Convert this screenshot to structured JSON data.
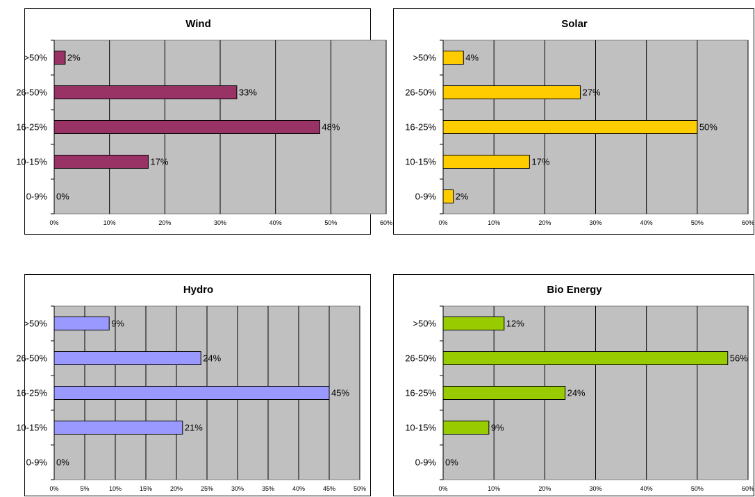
{
  "chart_data": [
    {
      "type": "bar",
      "title": "Wind",
      "categories": [
        ">50%",
        "26-50%",
        "16-25%",
        "10-15%",
        "0-9%"
      ],
      "values": [
        2,
        33,
        48,
        17,
        0
      ],
      "value_labels": [
        "2%",
        "33%",
        "48%",
        "17%",
        "0%"
      ],
      "xlim": [
        0,
        60
      ],
      "xticks": [
        "0%",
        "10%",
        "20%",
        "30%",
        "40%",
        "50%",
        "60%"
      ],
      "bar_color": "#993366",
      "plot_background": "#c0c0c0",
      "grid": true
    },
    {
      "type": "bar",
      "title": "Solar",
      "categories": [
        ">50%",
        "26-50%",
        "16-25%",
        "10-15%",
        "0-9%"
      ],
      "values": [
        4,
        27,
        50,
        17,
        2
      ],
      "value_labels": [
        "4%",
        "27%",
        "50%",
        "17%",
        "2%"
      ],
      "xlim": [
        0,
        60
      ],
      "xticks": [
        "0%",
        "10%",
        "20%",
        "30%",
        "40%",
        "50%",
        "60%"
      ],
      "bar_color": "#ffcc00",
      "plot_background": "#c0c0c0",
      "grid": true
    },
    {
      "type": "bar",
      "title": "Hydro",
      "categories": [
        ">50%",
        "26-50%",
        "16-25%",
        "10-15%",
        "0-9%"
      ],
      "values": [
        9,
        24,
        45,
        21,
        0
      ],
      "value_labels": [
        "9%",
        "24%",
        "45%",
        "21%",
        "0%"
      ],
      "xlim": [
        0,
        50
      ],
      "xticks": [
        "0%",
        "5%",
        "10%",
        "15%",
        "20%",
        "25%",
        "30%",
        "35%",
        "40%",
        "45%",
        "50%"
      ],
      "bar_color": "#9999ff",
      "plot_background": "#c0c0c0",
      "grid": true
    },
    {
      "type": "bar",
      "title": "Bio Energy",
      "categories": [
        ">50%",
        "26-50%",
        "16-25%",
        "10-15%",
        "0-9%"
      ],
      "values": [
        12,
        56,
        24,
        9,
        0
      ],
      "value_labels": [
        "12%",
        "56%",
        "24%",
        "9%",
        "0%"
      ],
      "xlim": [
        0,
        60
      ],
      "xticks": [
        "0%",
        "10%",
        "20%",
        "30%",
        "40%",
        "50%",
        "60%"
      ],
      "bar_color": "#99cc00",
      "plot_background": "#c0c0c0",
      "grid": true
    }
  ]
}
